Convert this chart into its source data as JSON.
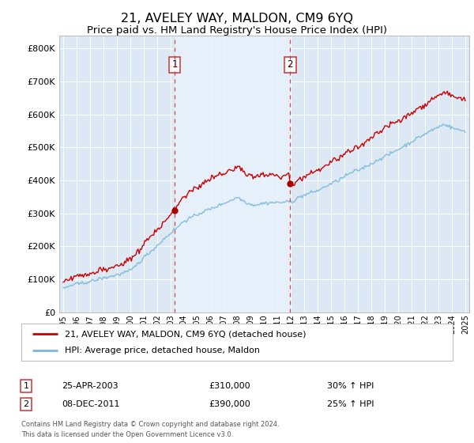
{
  "title": "21, AVELEY WAY, MALDON, CM9 6YQ",
  "subtitle": "Price paid vs. HM Land Registry's House Price Index (HPI)",
  "title_fontsize": 11.5,
  "subtitle_fontsize": 9.5,
  "ylabel_ticks": [
    "£0",
    "£100K",
    "£200K",
    "£300K",
    "£400K",
    "£500K",
    "£600K",
    "£700K",
    "£800K"
  ],
  "ytick_vals": [
    0,
    100000,
    200000,
    300000,
    400000,
    500000,
    600000,
    700000,
    800000
  ],
  "ylim": [
    0,
    840000
  ],
  "xlim_start": 1994.7,
  "xlim_end": 2025.3,
  "background_color": "#ffffff",
  "plot_bg_color": "#dce9f5",
  "plot_bg_light": "#e8f2fb",
  "grid_color": "#ffffff",
  "purchase1_x": 2003.31,
  "purchase1_y": 310000,
  "purchase2_x": 2011.93,
  "purchase2_y": 390000,
  "legend_line1": "21, AVELEY WAY, MALDON, CM9 6YQ (detached house)",
  "legend_line2": "HPI: Average price, detached house, Maldon",
  "annotation1_label": "1",
  "annotation1_date": "25-APR-2003",
  "annotation1_price": "£310,000",
  "annotation1_hpi": "30% ↑ HPI",
  "annotation2_label": "2",
  "annotation2_date": "08-DEC-2011",
  "annotation2_price": "£390,000",
  "annotation2_hpi": "25% ↑ HPI",
  "footer": "Contains HM Land Registry data © Crown copyright and database right 2024.\nThis data is licensed under the Open Government Licence v3.0.",
  "hpi_color": "#7ab8d9",
  "price_color": "#cc0000",
  "marker_color": "#aa0000",
  "vline_color": "#cc3333"
}
